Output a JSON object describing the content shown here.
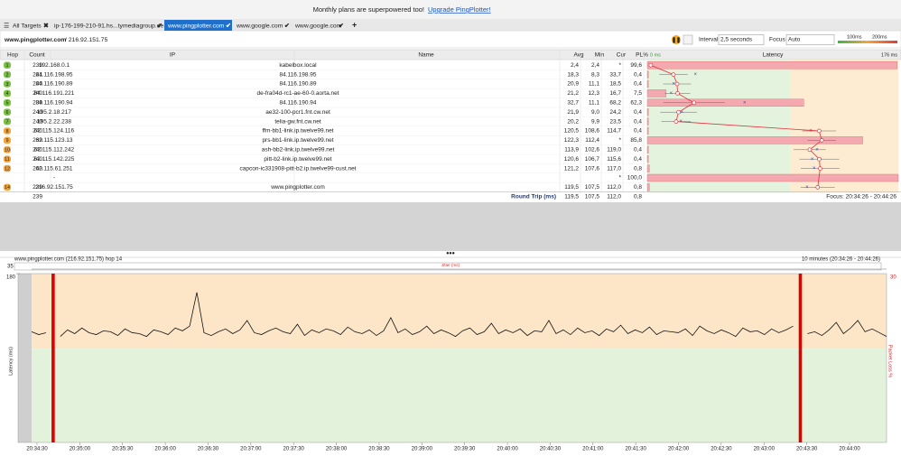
{
  "banner": {
    "text": "Monthly plans are superpowered too!",
    "link": "Upgrade PingPlotter!"
  },
  "tabs": [
    "All Targets",
    "ip-176-199-210-91.hs...tymediagroup.de",
    "www.pingplotter.com",
    "www.google.com",
    "www.google.com"
  ],
  "active_tab": 2,
  "toolbar": {
    "target": "www.pingplotter.com",
    "address": "/ 216.92.151.75",
    "interval_label": "Interval",
    "interval": "2,5 seconds",
    "focus_label": "Focus",
    "focus": "Auto",
    "legend": [
      "100ms",
      "200ms"
    ]
  },
  "table": {
    "headers": [
      "Hop",
      "Count",
      "IP",
      "Name",
      "Avg",
      "Min",
      "Cur",
      "PL%",
      "Latency"
    ],
    "scale": [
      "0 ms",
      "176 ms"
    ],
    "rows": [
      [
        "1",
        "239",
        "192.168.0.1",
        "kabelbox.local",
        "2,4",
        "2,4",
        "*",
        "99,6"
      ],
      [
        "2",
        "241",
        "84.116.198.95",
        "84.116.198.95",
        "18,3",
        "8,3",
        "33,7",
        "0,4"
      ],
      [
        "3",
        "240",
        "84.116.190.89",
        "84.116.190.89",
        "20,9",
        "11,1",
        "18,5",
        "0,4"
      ],
      [
        "4",
        "240",
        "84.116.191.221",
        "de-fra04d-rc1-ae-60-0.aorta.net",
        "21,2",
        "12,3",
        "16,7",
        "7,5"
      ],
      [
        "5",
        "239",
        "84.116.190.94",
        "84.116.190.94",
        "32,7",
        "11,1",
        "68,2",
        "62,3"
      ],
      [
        "6",
        "240",
        "195.2.18.217",
        "ae32-100-pcr1.fnt.cw.net",
        "21,9",
        "9,0",
        "24,2",
        "0,4"
      ],
      [
        "7",
        "240",
        "195.2.22.238",
        "telia-gw.fnt.cw.net",
        "20,2",
        "9,9",
        "23,5",
        "0,4"
      ],
      [
        "8",
        "240",
        "62.115.124.116",
        "ffm-bb1-link.ip.twelve99.net",
        "120,5",
        "108,6",
        "114,7",
        "0,4"
      ],
      [
        "9",
        "239",
        "62.115.123.13",
        "prs-bb1-link.ip.twelve99.net",
        "122,3",
        "112,4",
        "*",
        "85,8"
      ],
      [
        "10",
        "240",
        "62.115.112.242",
        "ash-bb2-link.ip.twelve99.net",
        "113,9",
        "102,6",
        "119,0",
        "0,4"
      ],
      [
        "11",
        "240",
        "62.115.142.225",
        "pitt-b2-link.ip.twelve99.net",
        "120,6",
        "106,7",
        "115,6",
        "0,4"
      ],
      [
        "12",
        "240",
        "62.115.61.251",
        "capcon-ic331908-pitt-b2.ip.twelve99-cust.net",
        "121,2",
        "107,6",
        "117,0",
        "0,8"
      ],
      [
        null,
        null,
        "-",
        null,
        null,
        null,
        "*",
        "100,0"
      ],
      [
        "14",
        "239",
        "216.92.151.75",
        "www.pingplotter.com",
        "119,5",
        "107,5",
        "112,0",
        "0,8"
      ]
    ],
    "footer": {
      "count": "239",
      "label": "Round Trip (ms)",
      "avg": "119,5",
      "min": "107,5",
      "cur": "112,0",
      "pl": "0,8",
      "focus": "Focus: 20:34:26 - 20:44:26"
    }
  },
  "chart_data": {
    "type": "line",
    "title": "www.pingplotter.com (216.92.151.75) hop 14",
    "subtitle": "10 minutes (20:34:26 - 20:44:26)",
    "jitter_label": "Jitter (ms)",
    "jitter_ticks": [
      35
    ],
    "ylabel": "Latency (ms)",
    "y2label": "Packet Loss %",
    "ylim": [
      0,
      180
    ],
    "yticks": [
      180
    ],
    "y2lim": [
      0,
      30
    ],
    "y2ticks": [
      30
    ],
    "color": "#111",
    "loss_color": "#e00000",
    "xticks": [
      "20:34:30",
      "20:35:00",
      "20:35:30",
      "20:36:00",
      "20:36:30",
      "20:37:00",
      "20:37:30",
      "20:38:00",
      "20:38:30",
      "20:39:00",
      "20:39:30",
      "20:40:00",
      "20:40:30",
      "20:41:00",
      "20:41:30",
      "20:42:00",
      "20:42:30",
      "20:43:00",
      "20:43:30",
      "20:44:00"
    ],
    "values": [
      118,
      115,
      117,
      null,
      113,
      120,
      116,
      122,
      117,
      115,
      119,
      118,
      114,
      121,
      117,
      116,
      113,
      120,
      118,
      115,
      122,
      119,
      124,
      160,
      117,
      114,
      118,
      121,
      116,
      120,
      130,
      117,
      115,
      119,
      122,
      118,
      116,
      126,
      114,
      120,
      117,
      121,
      119,
      115,
      123,
      118,
      116,
      120,
      114,
      119,
      133,
      117,
      121,
      115,
      118,
      124,
      116,
      120,
      117,
      113,
      119,
      122,
      115,
      118,
      127,
      116,
      120,
      117,
      121,
      114,
      119,
      118,
      130,
      116,
      120,
      115,
      122,
      117,
      119,
      114,
      121,
      118,
      125,
      116,
      120,
      117,
      123,
      115,
      119,
      118,
      117,
      121,
      114,
      124,
      119,
      116,
      120,
      117,
      113,
      122,
      118,
      119,
      115,
      121,
      117,
      120,
      124,
      null,
      116,
      118,
      114,
      120,
      128,
      116,
      122,
      130,
      118,
      121,
      117,
      113
    ]
  }
}
